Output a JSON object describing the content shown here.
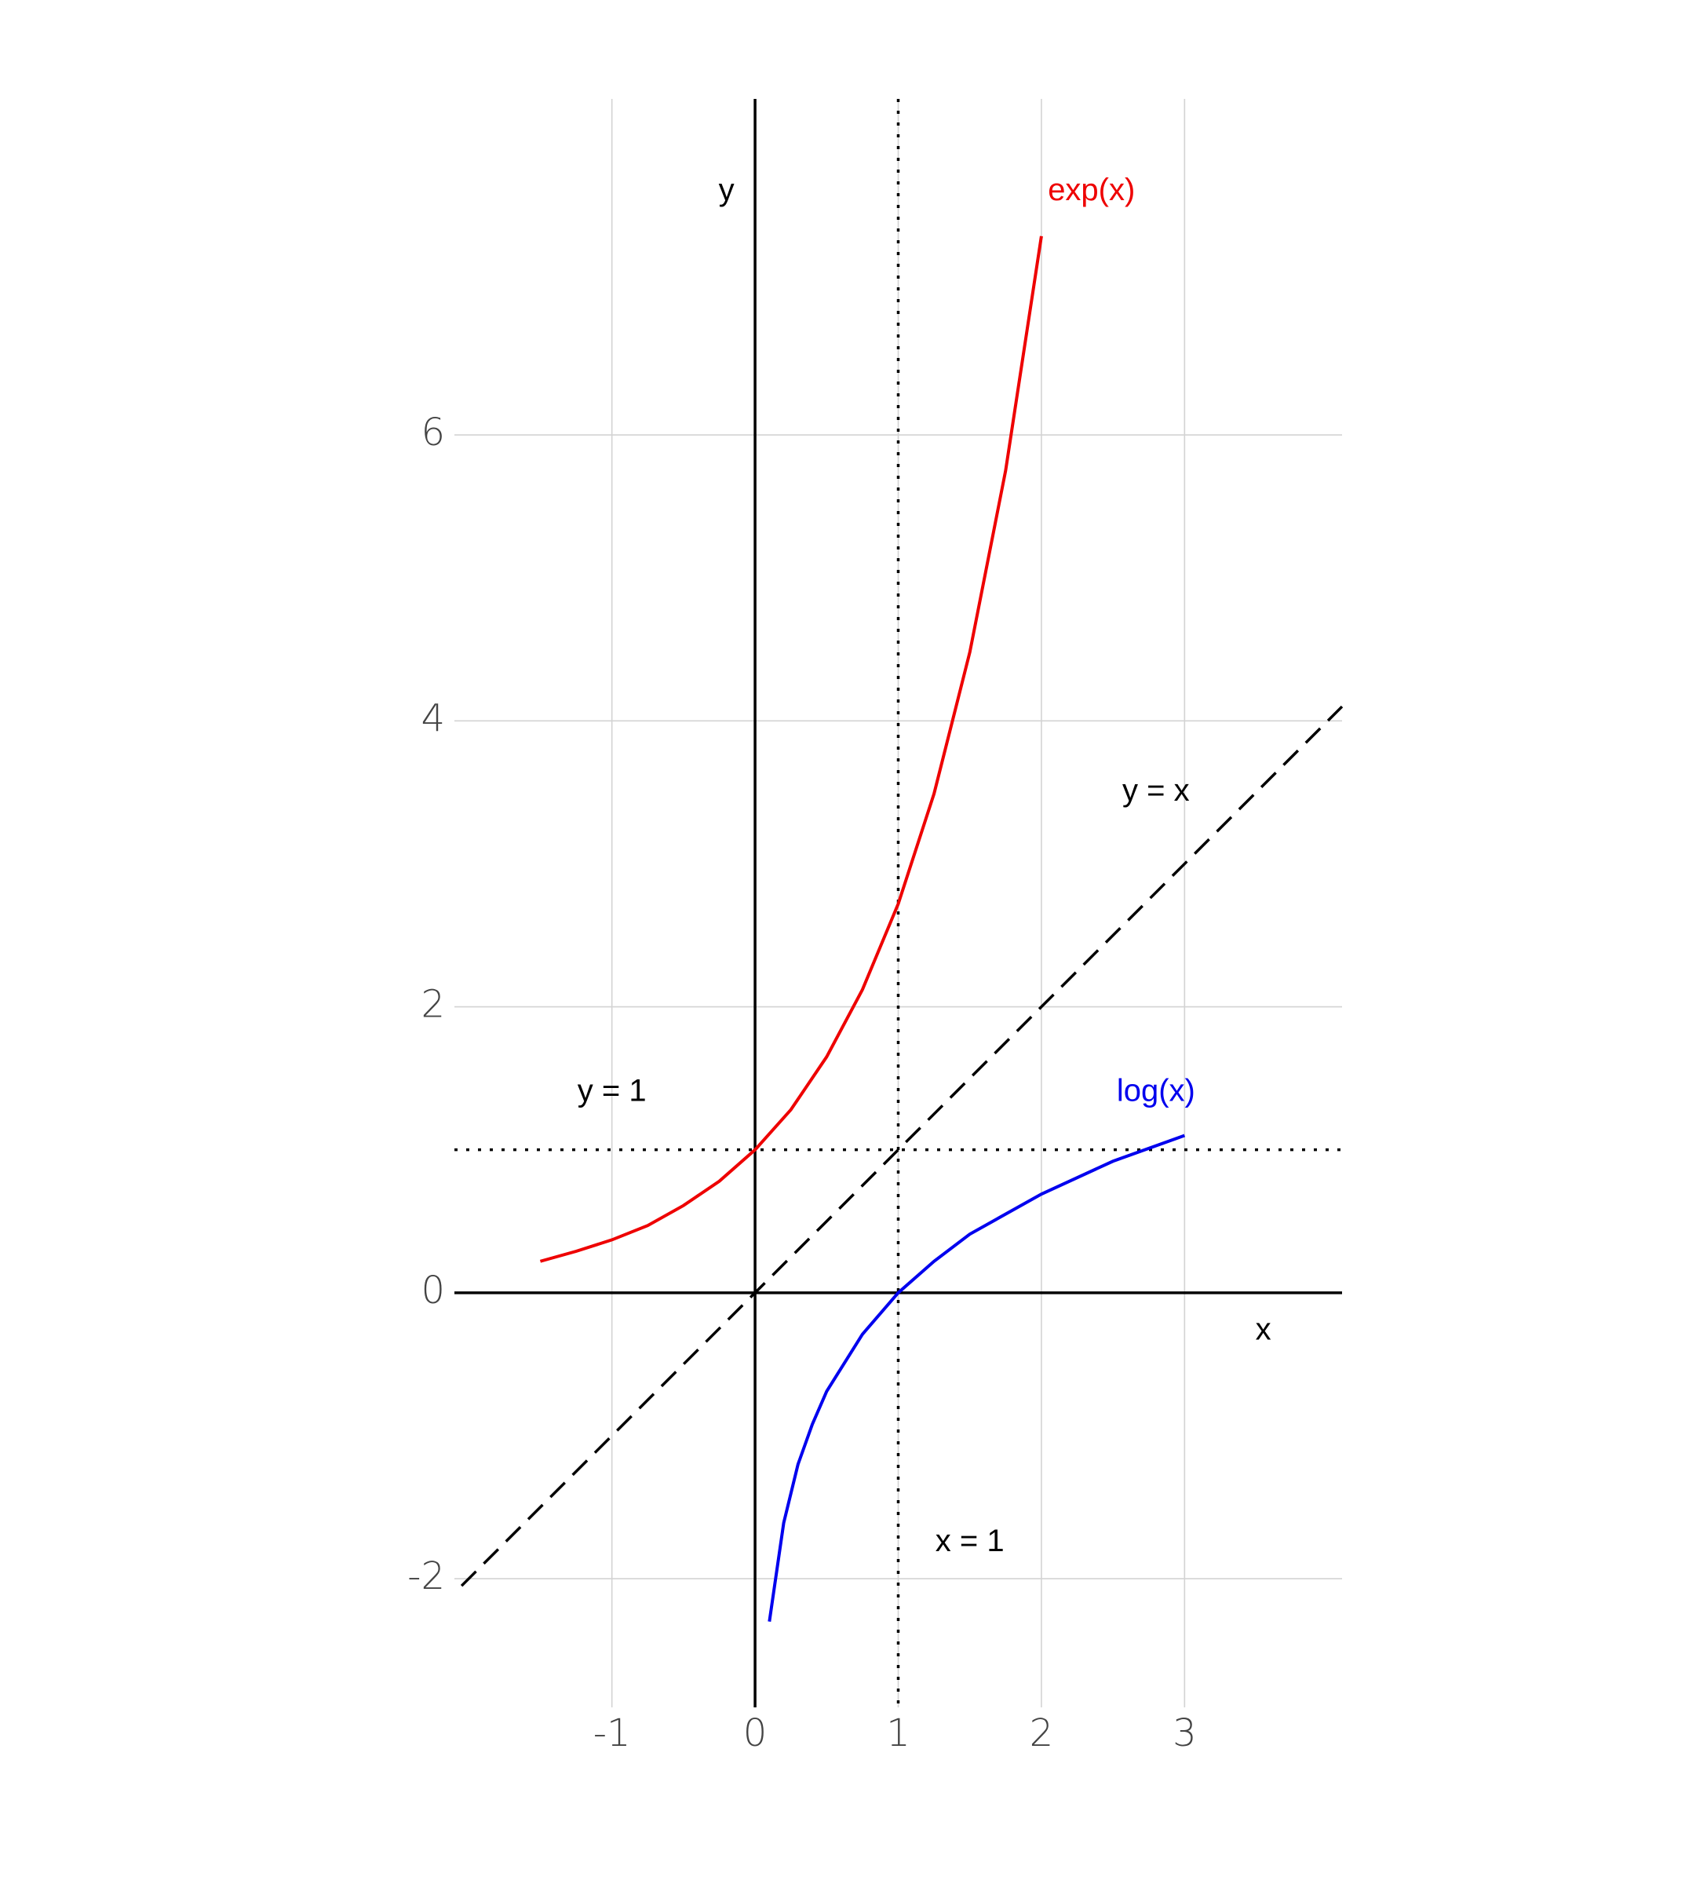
{
  "chart_data": {
    "type": "line",
    "xlim": [
      -2.1,
      4.1
    ],
    "ylim": [
      -2.9,
      8.35
    ],
    "xticks": [
      -1,
      0,
      1,
      2,
      3
    ],
    "yticks": [
      -2,
      0,
      2,
      4,
      6
    ],
    "grid": true,
    "series": [
      {
        "color": "#ee0000",
        "style": "solid",
        "x": [
          -1.5,
          -1.25,
          -1,
          -0.75,
          -0.5,
          -0.25,
          0,
          0.25,
          0.5,
          0.75,
          1,
          1.25,
          1.5,
          1.75,
          2
        ],
        "values": [
          0.22,
          0.29,
          0.37,
          0.47,
          0.61,
          0.78,
          1,
          1.28,
          1.65,
          2.12,
          2.72,
          3.49,
          4.48,
          5.75,
          7.39
        ]
      },
      {
        "color": "#0000ee",
        "style": "solid",
        "x": [
          0.1,
          0.2,
          0.3,
          0.4,
          0.5,
          0.75,
          1,
          1.25,
          1.5,
          2,
          2.5,
          3
        ],
        "values": [
          -2.3,
          -1.61,
          -1.2,
          -0.92,
          -0.69,
          -0.29,
          0,
          0.22,
          0.41,
          0.69,
          0.92,
          1.1
        ]
      },
      {
        "color": "#000000",
        "style": "dashed",
        "x": [
          -2.05,
          4.1
        ],
        "values": [
          -2.05,
          4.1
        ]
      }
    ],
    "hlines": [
      {
        "y": 0,
        "style": "solid"
      },
      {
        "y": 1,
        "style": "dotted"
      }
    ],
    "vlines": [
      {
        "x": 0,
        "style": "solid"
      },
      {
        "x": 1,
        "style": "dotted"
      }
    ],
    "annotations": [
      {
        "text": "y",
        "x": -0.2,
        "y": 7.7,
        "color": "#000000"
      },
      {
        "text": "exp(x)",
        "x": 2.35,
        "y": 7.7,
        "color": "#ee0000"
      },
      {
        "text": "y = x",
        "x": 2.8,
        "y": 3.5,
        "color": "#000000"
      },
      {
        "text": "y = 1",
        "x": -1.0,
        "y": 1.4,
        "color": "#000000"
      },
      {
        "text": "log(x)",
        "x": 2.8,
        "y": 1.4,
        "color": "#0000ee"
      },
      {
        "text": "x = 1",
        "x": 1.5,
        "y": -1.75,
        "color": "#000000"
      },
      {
        "text": "x",
        "x": 3.55,
        "y": -0.27,
        "color": "#000000"
      }
    ]
  }
}
